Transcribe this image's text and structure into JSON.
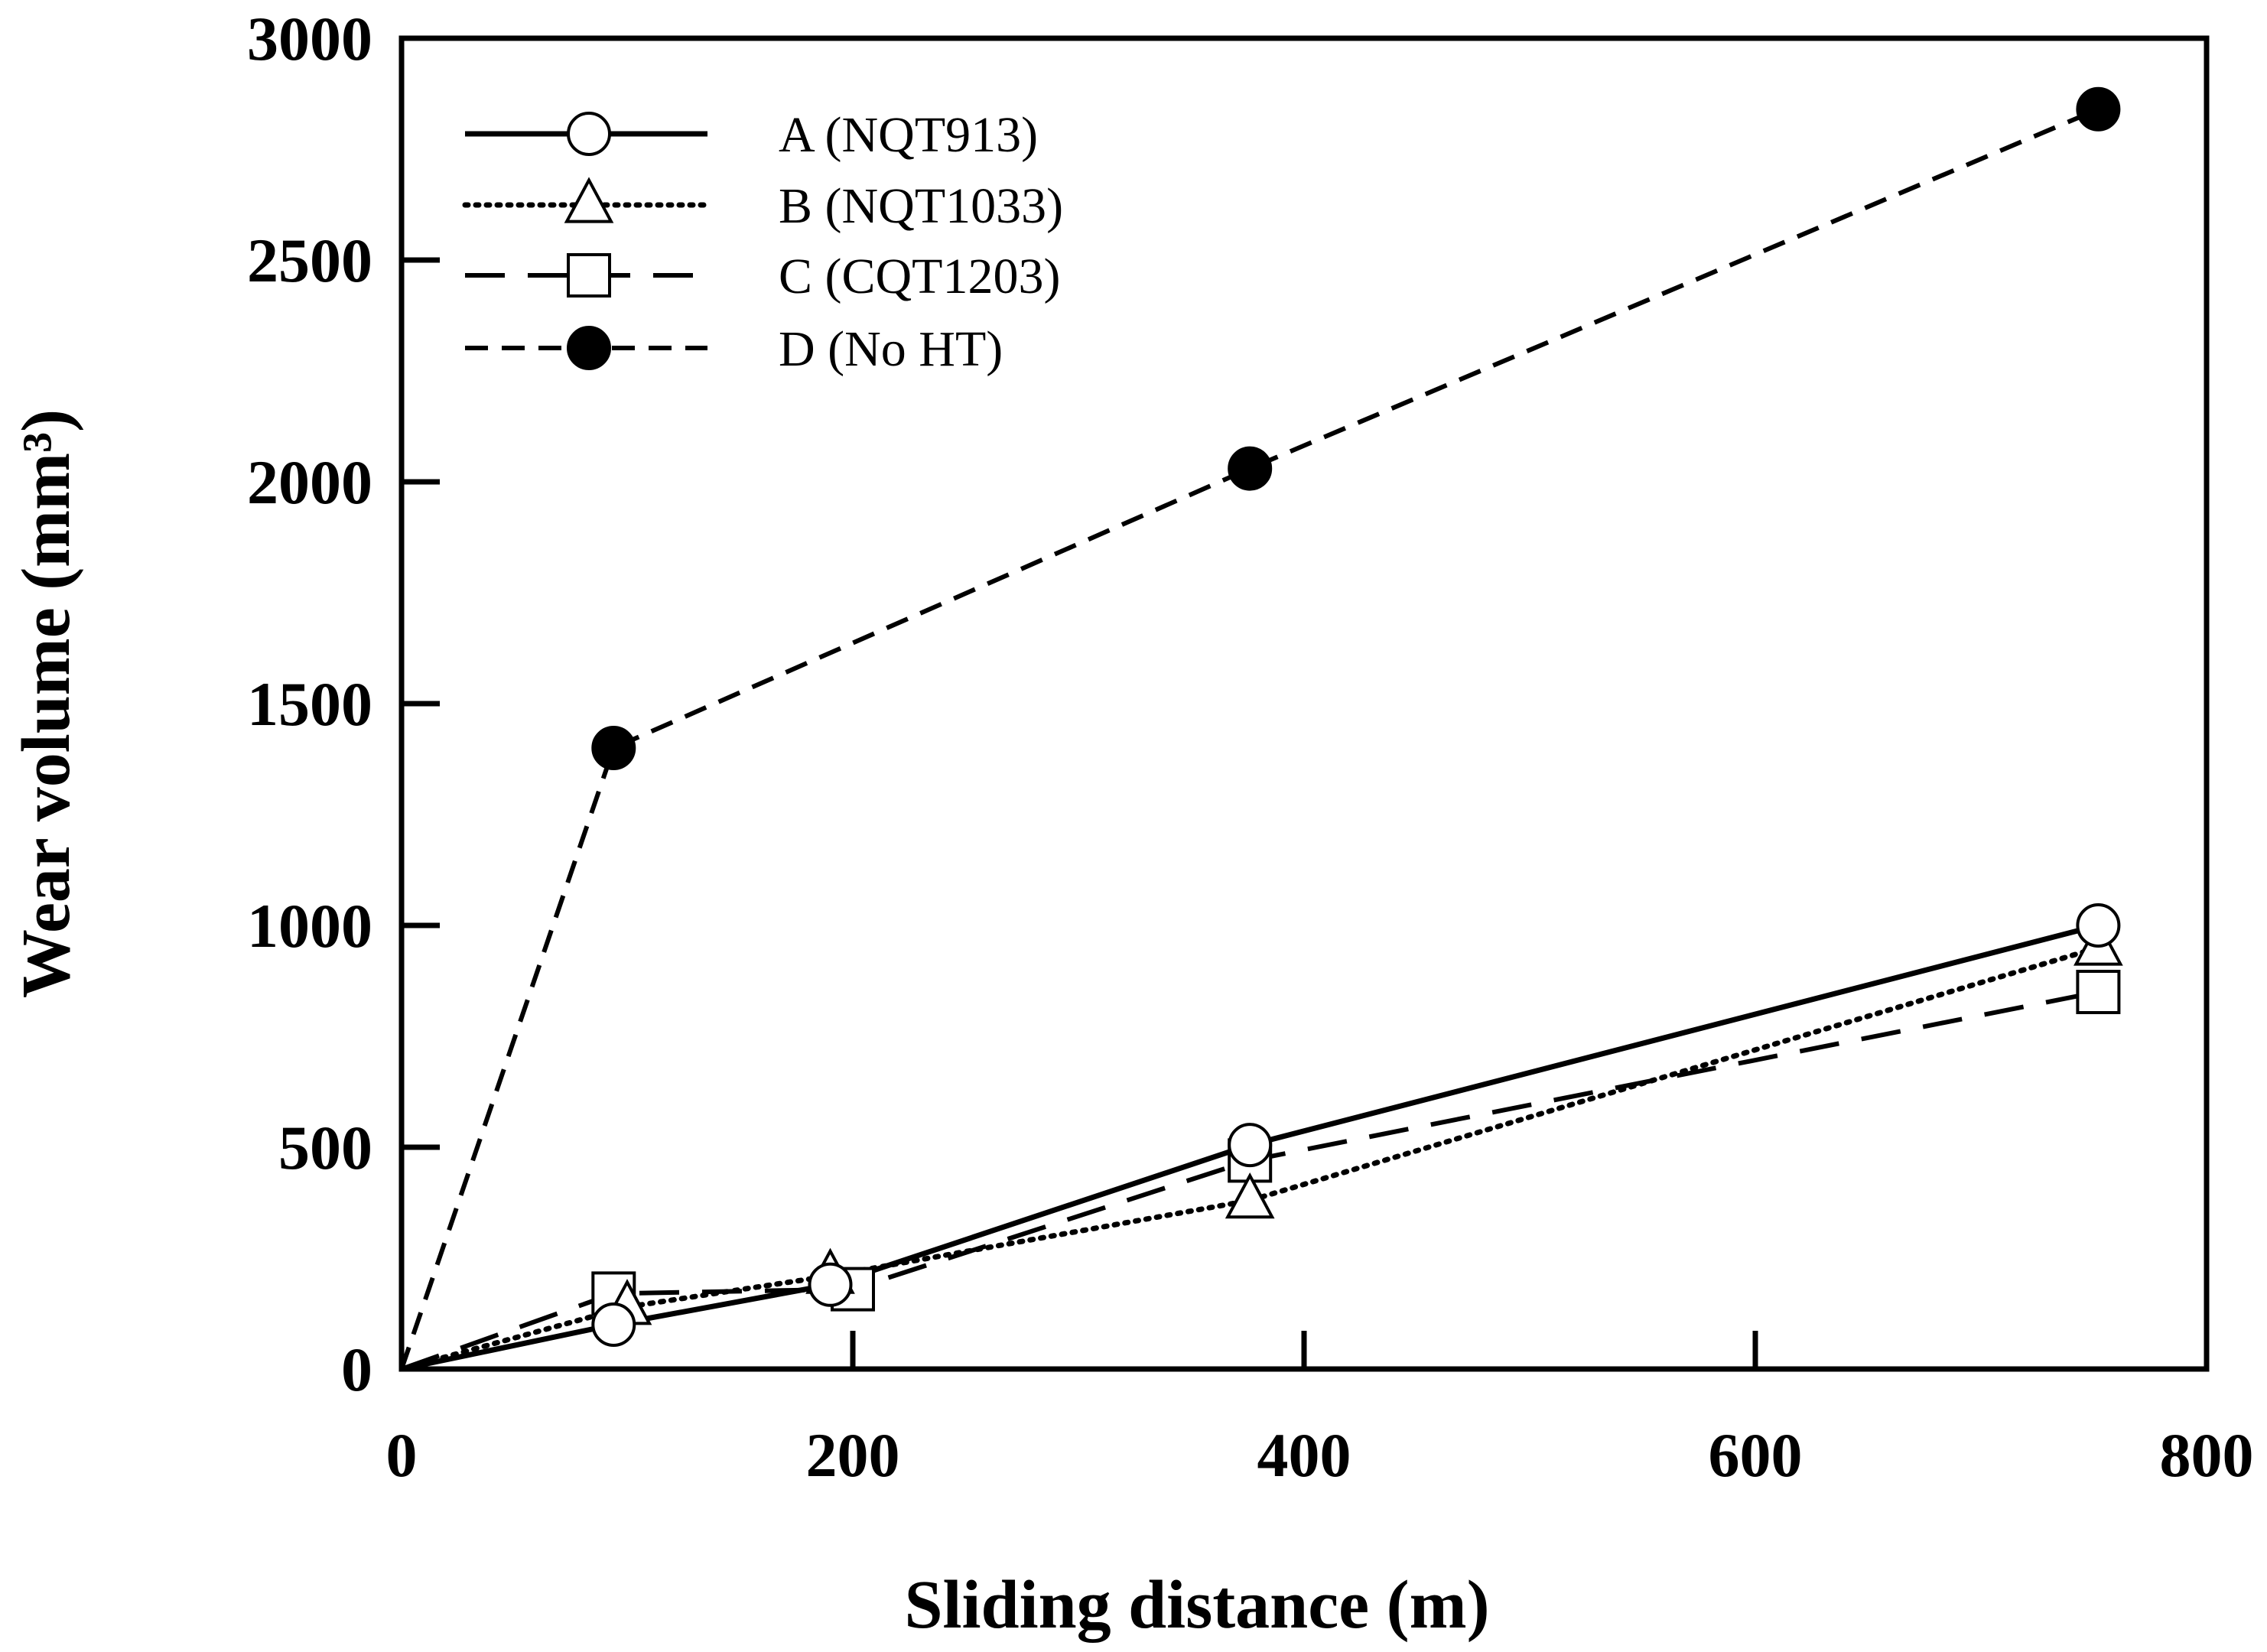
{
  "chart_data": {
    "type": "line",
    "title": "",
    "xlabel": "Sliding distance (m)",
    "ylabel": "Wear volume (mm³)",
    "xlim": [
      0,
      800
    ],
    "ylim": [
      0,
      3000
    ],
    "xticks": [
      0,
      200,
      400,
      600,
      800
    ],
    "yticks": [
      0,
      500,
      1000,
      1500,
      2000,
      2500,
      3000
    ],
    "grid": false,
    "legend_position": "top-left",
    "series": [
      {
        "name": "A (NQT913)",
        "line_style": "solid",
        "marker": "open-circle",
        "x": [
          0,
          94,
          190,
          376,
          752
        ],
        "y": [
          0,
          100,
          190,
          505,
          1000
        ]
      },
      {
        "name": "B (NQT1033)",
        "line_style": "dotted",
        "marker": "open-triangle",
        "x": [
          0,
          100,
          190,
          376,
          752
        ],
        "y": [
          0,
          140,
          210,
          380,
          950
        ]
      },
      {
        "name": "C (CQT1203)",
        "line_style": "long-dash",
        "marker": "open-square",
        "x": [
          0,
          94,
          200,
          376,
          752
        ],
        "y": [
          0,
          170,
          180,
          470,
          850
        ]
      },
      {
        "name": "D (No HT)",
        "line_style": "short-dash",
        "marker": "filled-circle",
        "x": [
          0,
          94,
          376,
          752
        ],
        "y": [
          0,
          1400,
          2030,
          2840
        ]
      }
    ]
  }
}
